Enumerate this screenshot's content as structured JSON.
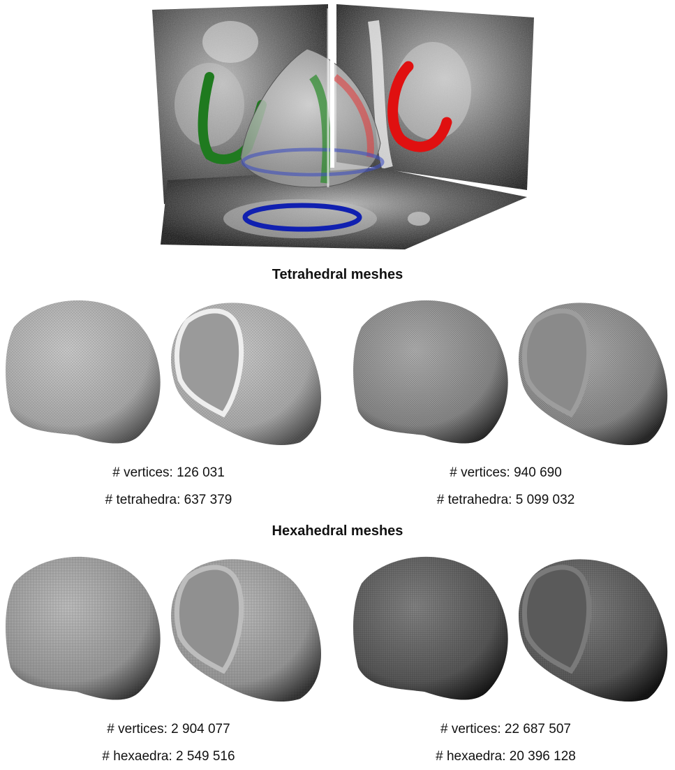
{
  "sections": [
    {
      "title": "Tetrahedral meshes",
      "meshes": [
        {
          "stats": [
            "# vertices: 126 031",
            "# tetrahedra: 637 379"
          ]
        },
        {
          "stats": [
            "# vertices: 940 690",
            "# tetrahedra: 5 099 032"
          ]
        }
      ]
    },
    {
      "title": "Hexahedral meshes",
      "meshes": [
        {
          "stats": [
            "# vertices: 2 904 077",
            "# hexaedra: 2 549 516"
          ]
        },
        {
          "stats": [
            "# vertices: 22 687 507",
            "# hexaedra: 20 396 128"
          ]
        }
      ]
    }
  ],
  "colors": {
    "green_contour": "#1f7a1f",
    "red_contour": "#e01010",
    "blue_contour": "#1020b0"
  }
}
